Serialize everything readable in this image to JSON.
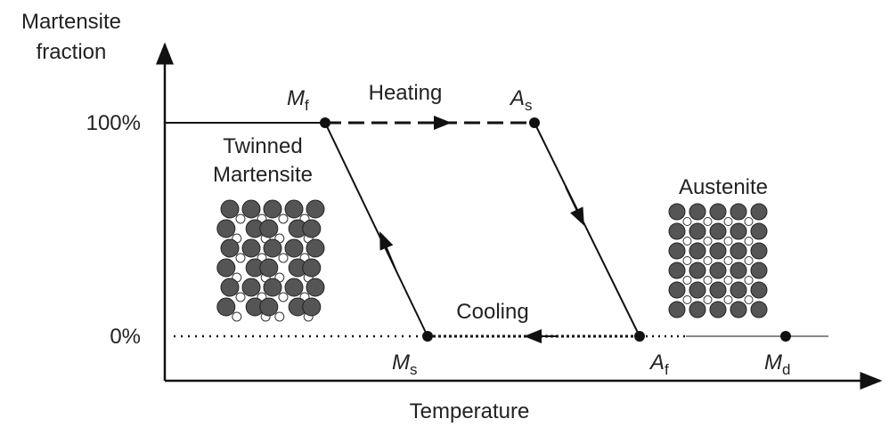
{
  "axes": {
    "y_label": [
      "Martensite",
      "fraction"
    ],
    "x_label": "Temperature",
    "y_ticks": [
      "100%",
      "0%"
    ]
  },
  "arrows": {
    "heating": "Heating",
    "cooling": "Cooling"
  },
  "phases": {
    "martensite": [
      "Twinned",
      "Martensite"
    ],
    "austenite": "Austenite"
  },
  "points": [
    {
      "base": "M",
      "sub": "f"
    },
    {
      "base": "A",
      "sub": "s"
    },
    {
      "base": "M",
      "sub": "s"
    },
    {
      "base": "A",
      "sub": "f"
    },
    {
      "base": "M",
      "sub": "d"
    }
  ]
}
